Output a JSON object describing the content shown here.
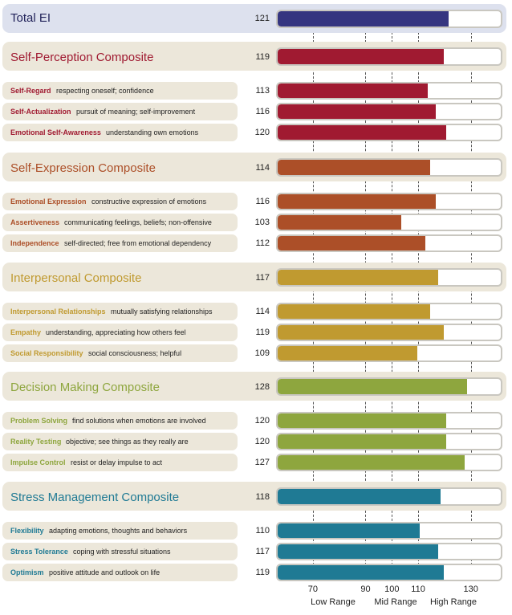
{
  "chart_data": {
    "type": "bar",
    "orientation": "horizontal",
    "xlim": [
      56,
      142
    ],
    "ticks": [
      70,
      90,
      100,
      110,
      130
    ],
    "range_labels": [
      "Low Range",
      "Mid Range",
      "High Range"
    ],
    "total": {
      "label": "Total EI",
      "value": 121,
      "color": "#353580"
    },
    "composites": [
      {
        "name": "Self-Perception Composite",
        "value": 119,
        "color": "#a01a31",
        "subscales": [
          {
            "name": "Self-Regard",
            "desc": "respecting oneself; confidence",
            "value": 113
          },
          {
            "name": "Self-Actualization",
            "desc": "pursuit of meaning; self-improvement",
            "value": 116
          },
          {
            "name": "Emotional Self-Awareness",
            "desc": "understanding own emotions",
            "value": 120
          }
        ]
      },
      {
        "name": "Self-Expression Composite",
        "value": 114,
        "color": "#ac4f28",
        "subscales": [
          {
            "name": "Emotional Expression",
            "desc": "constructive expression of emotions",
            "value": 116
          },
          {
            "name": "Assertiveness",
            "desc": "communicating feelings, beliefs; non-offensive",
            "value": 103
          },
          {
            "name": "Independence",
            "desc": "self-directed; free from emotional dependency",
            "value": 112
          }
        ]
      },
      {
        "name": "Interpersonal Composite",
        "value": 117,
        "color": "#c09a30",
        "subscales": [
          {
            "name": "Interpersonal Relationships",
            "desc": "mutually satisfying relationships",
            "value": 114
          },
          {
            "name": "Empathy",
            "desc": "understanding, appreciating how others feel",
            "value": 119
          },
          {
            "name": "Social Responsibility",
            "desc": "social consciousness; helpful",
            "value": 109
          }
        ]
      },
      {
        "name": "Decision Making Composite",
        "value": 128,
        "color": "#8ea63e",
        "subscales": [
          {
            "name": "Problem Solving",
            "desc": "find solutions when emotions are involved",
            "value": 120
          },
          {
            "name": "Reality Testing",
            "desc": "objective; see things as they really are",
            "value": 120
          },
          {
            "name": "Impulse Control",
            "desc": "resist or delay impulse to act",
            "value": 127
          }
        ]
      },
      {
        "name": "Stress Management Composite",
        "value": 118,
        "color": "#1f7a94",
        "subscales": [
          {
            "name": "Flexibility",
            "desc": "adapting emotions, thoughts and behaviors",
            "value": 110
          },
          {
            "name": "Stress Tolerance",
            "desc": "coping with stressful situations",
            "value": 117
          },
          {
            "name": "Optimism",
            "desc": "positive attitude and outlook on life",
            "value": 119
          }
        ]
      }
    ]
  }
}
